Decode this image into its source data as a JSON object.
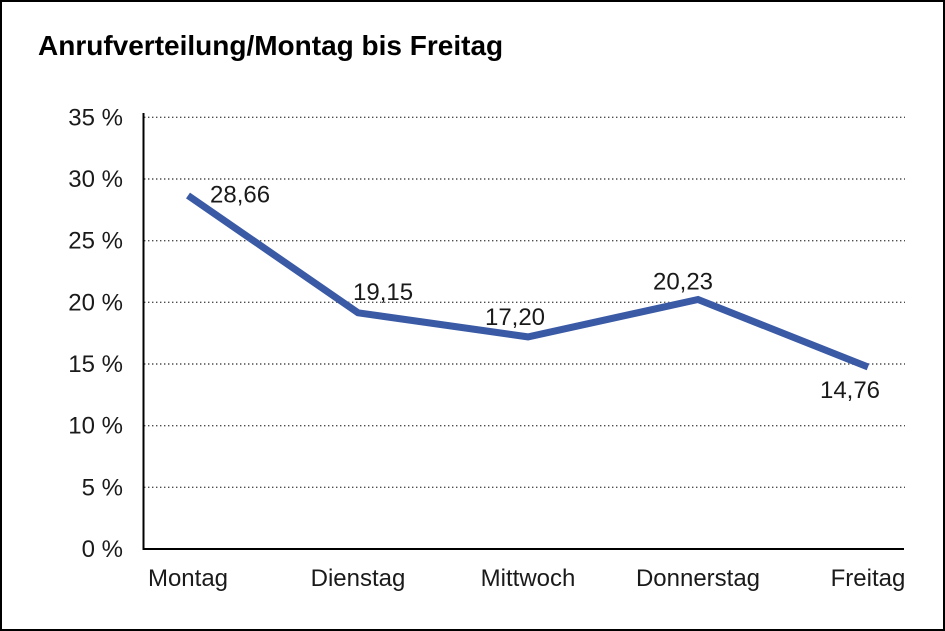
{
  "chart_data": {
    "type": "line",
    "title": "Anrufverteilung/Montag bis Freitag",
    "categories": [
      "Montag",
      "Dienstag",
      "Mittwoch",
      "Donnerstag",
      "Freitag"
    ],
    "values": [
      28.66,
      19.15,
      17.2,
      20.23,
      14.76
    ],
    "value_labels": [
      "28,66",
      "19,15",
      "17,20",
      "20,23",
      "14,76"
    ],
    "xlabel": "",
    "ylabel": "",
    "ylim": [
      0,
      35
    ],
    "y_tick_step": 5,
    "y_tick_labels": [
      "0 %",
      "5 %",
      "10 %",
      "15 %",
      "20 %",
      "25 %",
      "30 %",
      "35 %"
    ],
    "grid": "horizontal-dotted",
    "legend_position": "none",
    "colors": {
      "line": "#3A5AA6",
      "axis": "#000000",
      "gridline": "#4d4d4d",
      "text": "#1a1a1a",
      "background": "#ffffff",
      "border": "#000000"
    }
  }
}
